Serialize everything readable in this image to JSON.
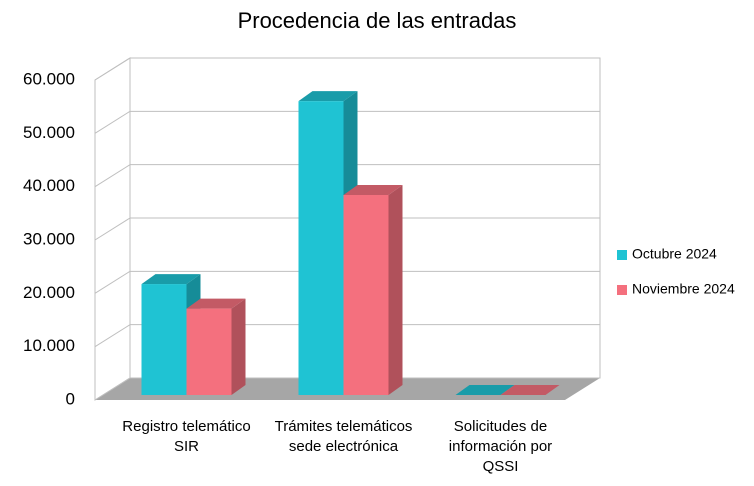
{
  "chart_data": {
    "type": "bar3d",
    "title": "Procedencia de las entradas",
    "categories": [
      "Registro telemático SIR",
      "Trámites telemáticos sede electrónica",
      "Solicitudes de información por QSSI"
    ],
    "series": [
      {
        "name": "Octubre 2024",
        "color": "#1fc3d3",
        "values": [
          20800,
          55100,
          0
        ]
      },
      {
        "name": "Noviembre 2024",
        "color": "#f4707e",
        "values": [
          16200,
          37500,
          0
        ]
      }
    ],
    "ylim": [
      0,
      60000
    ],
    "yticks": [
      0,
      {
        "value": 10000,
        "label": "10.000"
      },
      {
        "value": 20000,
        "label": "20.000"
      },
      {
        "value": 30000,
        "label": "30.000"
      },
      {
        "value": 40000,
        "label": "40.000"
      },
      {
        "value": 50000,
        "label": "50.000"
      },
      {
        "value": 60000,
        "label": "60.000"
      }
    ],
    "grid": true,
    "legend": "right"
  }
}
